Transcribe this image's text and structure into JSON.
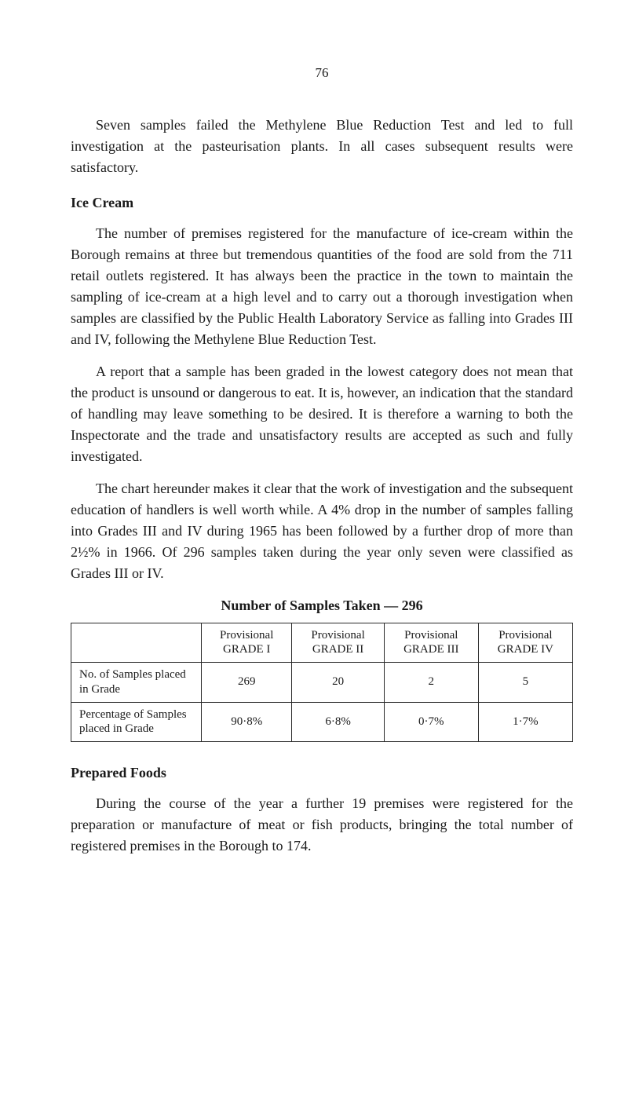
{
  "pageNumber": "76",
  "paragraphs": {
    "intro": "Seven samples failed the Methylene Blue Reduction Test and led to full investigation at the pasteurisation plants. In all cases subsequent results were satisfactory.",
    "iceCreamHeading": "Ice Cream",
    "iceCream1": "The number of premises registered for the manufacture of ice-cream within the Borough remains at three but tremendous quantities of the food are sold from the 711 retail outlets registered. It has always been the practice in the town to maintain the sampling of ice-cream at a high level and to carry out a thorough investigation when samples are classified by the Public Health Laboratory Service as falling into Grades III and IV, following the Methylene Blue Reduction Test.",
    "iceCream2": "A report that a sample has been graded in the lowest category does not mean that the product is unsound or dangerous to eat. It is, however, an indication that the standard of handling may leave something to be desired. It is therefore a warning to both the Inspectorate and the trade and unsatisfactory results are accepted as such and fully investigated.",
    "iceCream3": "The chart hereunder makes it clear that the work of investigation and the subsequent education of handlers is well worth while. A 4% drop in the number of samples falling into Grades III and IV during 1965 has been followed by a further drop of more than 2½% in 1966. Of 296 samples taken during the year only seven were classified as Grades III or IV.",
    "preparedHeading": "Prepared Foods",
    "prepared1": "During the course of the year a further 19 premises were registered for the preparation or manufacture of meat or fish products, bringing the total number of registered premises in the Borough to 174."
  },
  "table": {
    "title": "Number of Samples Taken — 296",
    "columns": [
      "",
      "Provisional GRADE I",
      "Provisional GRADE II",
      "Provisional GRADE III",
      "Provisional GRADE IV"
    ],
    "rows": [
      {
        "label": "No. of Samples placed in Grade",
        "values": [
          "269",
          "20",
          "2",
          "5"
        ]
      },
      {
        "label": "Percentage of Samples placed in Grade",
        "values": [
          "90·8%",
          "6·8%",
          "0·7%",
          "1·7%"
        ]
      }
    ]
  }
}
